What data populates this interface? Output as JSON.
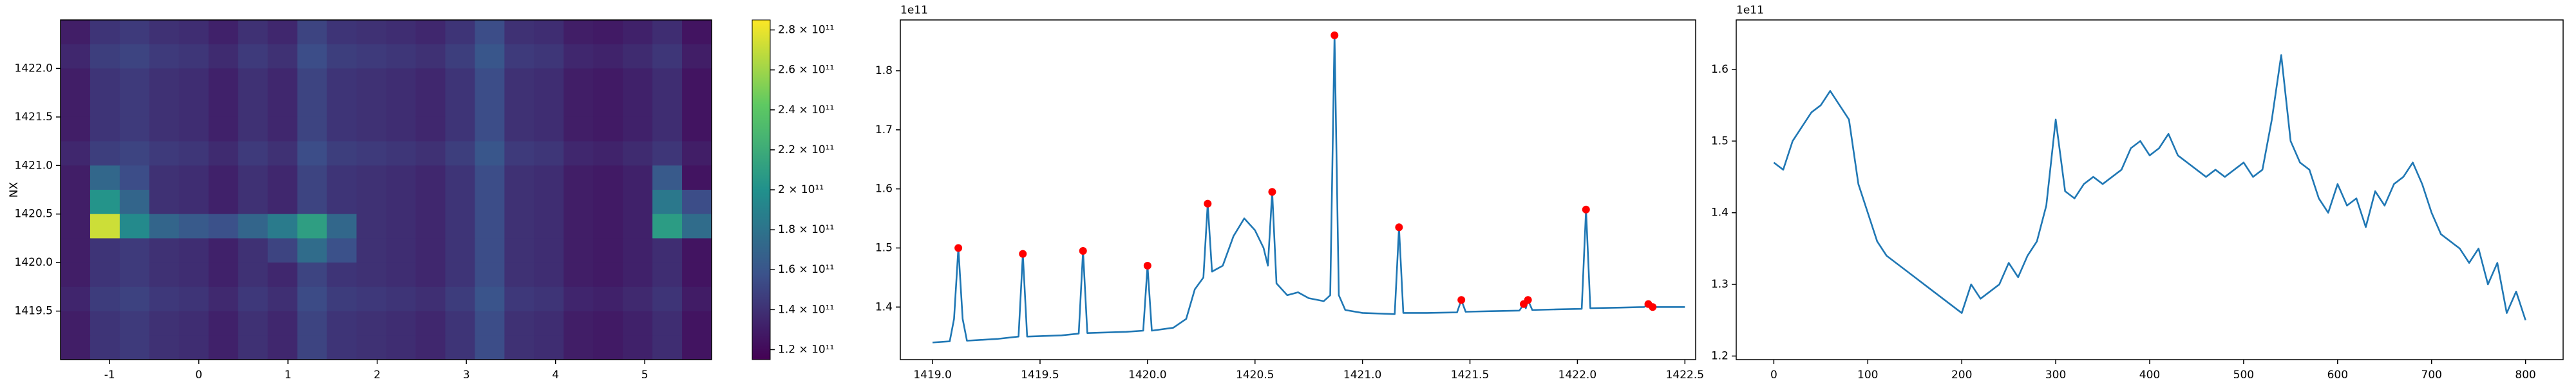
{
  "chart_data": [
    {
      "type": "heatmap",
      "ylabel": "NX",
      "colormap": "viridis",
      "xlim": [
        -1.55,
        5.75
      ],
      "ylim": [
        1419.0,
        1422.5
      ],
      "xticks": [
        -1,
        0,
        1,
        2,
        3,
        4,
        5
      ],
      "yticks": [
        1419.5,
        {
          "value": 1420,
          "label": "1420.0"
        },
        1420.5,
        {
          "value": 1421,
          "label": "1421.0"
        },
        1421.5,
        {
          "value": 1422,
          "label": "1422.0"
        }
      ],
      "clim": [
        115000000000.0,
        285000000000.0
      ],
      "cticks": [
        {
          "value": 120000000000.0,
          "label": "1.2 × 10¹¹"
        },
        {
          "value": 140000000000.0,
          "label": "1.4 × 10¹¹"
        },
        {
          "value": 160000000000.0,
          "label": "1.6 × 10¹¹"
        },
        {
          "value": 180000000000.0,
          "label": "1.8 × 10¹¹"
        },
        {
          "value": 200000000000.0,
          "label": "2 × 10¹¹"
        },
        {
          "value": 220000000000.0,
          "label": "2.2 × 10¹¹"
        },
        {
          "value": 240000000000.0,
          "label": "2.4 × 10¹¹"
        },
        {
          "value": 260000000000.0,
          "label": "2.6 × 10¹¹"
        },
        {
          "value": 280000000000.0,
          "label": "2.8 × 10¹¹"
        }
      ],
      "z": [
        [
          130000000000.0,
          142000000000.0,
          145000000000.0,
          140000000000.0,
          138000000000.0,
          132000000000.0,
          140000000000.0,
          135000000000.0,
          150000000000.0,
          142000000000.0,
          140000000000.0,
          138000000000.0,
          135000000000.0,
          142000000000.0,
          155000000000.0,
          140000000000.0,
          138000000000.0,
          130000000000.0,
          128000000000.0,
          132000000000.0,
          138000000000.0,
          125000000000.0
        ],
        [
          135000000000.0,
          147000000000.0,
          150000000000.0,
          145000000000.0,
          143000000000.0,
          137000000000.0,
          145000000000.0,
          140000000000.0,
          155000000000.0,
          147000000000.0,
          145000000000.0,
          143000000000.0,
          140000000000.0,
          147000000000.0,
          160000000000.0,
          145000000000.0,
          143000000000.0,
          135000000000.0,
          133000000000.0,
          137000000000.0,
          143000000000.0,
          130000000000.0
        ],
        [
          130000000000.0,
          142000000000.0,
          145000000000.0,
          140000000000.0,
          138000000000.0,
          132000000000.0,
          140000000000.0,
          135000000000.0,
          150000000000.0,
          142000000000.0,
          140000000000.0,
          138000000000.0,
          135000000000.0,
          142000000000.0,
          155000000000.0,
          140000000000.0,
          138000000000.0,
          130000000000.0,
          128000000000.0,
          132000000000.0,
          138000000000.0,
          125000000000.0
        ],
        [
          130000000000.0,
          142000000000.0,
          145000000000.0,
          140000000000.0,
          138000000000.0,
          132000000000.0,
          140000000000.0,
          135000000000.0,
          150000000000.0,
          142000000000.0,
          140000000000.0,
          138000000000.0,
          135000000000.0,
          142000000000.0,
          155000000000.0,
          140000000000.0,
          138000000000.0,
          130000000000.0,
          128000000000.0,
          132000000000.0,
          138000000000.0,
          125000000000.0
        ],
        [
          130000000000.0,
          142000000000.0,
          145000000000.0,
          140000000000.0,
          138000000000.0,
          132000000000.0,
          140000000000.0,
          135000000000.0,
          150000000000.0,
          142000000000.0,
          140000000000.0,
          138000000000.0,
          135000000000.0,
          142000000000.0,
          155000000000.0,
          140000000000.0,
          138000000000.0,
          130000000000.0,
          128000000000.0,
          132000000000.0,
          138000000000.0,
          125000000000.0
        ],
        [
          135000000000.0,
          147000000000.0,
          150000000000.0,
          145000000000.0,
          143000000000.0,
          137000000000.0,
          145000000000.0,
          140000000000.0,
          155000000000.0,
          147000000000.0,
          145000000000.0,
          143000000000.0,
          140000000000.0,
          147000000000.0,
          160000000000.0,
          145000000000.0,
          143000000000.0,
          135000000000.0,
          133000000000.0,
          137000000000.0,
          143000000000.0,
          130000000000.0
        ],
        [
          130000000000.0,
          172000000000.0,
          155000000000.0,
          140000000000.0,
          138000000000.0,
          132000000000.0,
          140000000000.0,
          135000000000.0,
          150000000000.0,
          142000000000.0,
          140000000000.0,
          138000000000.0,
          135000000000.0,
          142000000000.0,
          155000000000.0,
          140000000000.0,
          138000000000.0,
          130000000000.0,
          128000000000.0,
          132000000000.0,
          163000000000.0,
          125000000000.0
        ],
        [
          130000000000.0,
          202000000000.0,
          170000000000.0,
          140000000000.0,
          138000000000.0,
          132000000000.0,
          140000000000.0,
          135000000000.0,
          150000000000.0,
          142000000000.0,
          140000000000.0,
          138000000000.0,
          135000000000.0,
          142000000000.0,
          155000000000.0,
          140000000000.0,
          138000000000.0,
          130000000000.0,
          128000000000.0,
          132000000000.0,
          183000000000.0,
          155000000000.0
        ],
        [
          130000000000.0,
          272000000000.0,
          195000000000.0,
          170000000000.0,
          163000000000.0,
          157000000000.0,
          170000000000.0,
          185000000000.0,
          210000000000.0,
          172000000000.0,
          140000000000.0,
          138000000000.0,
          135000000000.0,
          142000000000.0,
          155000000000.0,
          140000000000.0,
          138000000000.0,
          130000000000.0,
          128000000000.0,
          132000000000.0,
          208000000000.0,
          175000000000.0
        ],
        [
          130000000000.0,
          142000000000.0,
          145000000000.0,
          140000000000.0,
          138000000000.0,
          132000000000.0,
          140000000000.0,
          150000000000.0,
          175000000000.0,
          157000000000.0,
          140000000000.0,
          138000000000.0,
          135000000000.0,
          142000000000.0,
          155000000000.0,
          140000000000.0,
          138000000000.0,
          130000000000.0,
          128000000000.0,
          132000000000.0,
          138000000000.0,
          125000000000.0
        ],
        [
          130000000000.0,
          142000000000.0,
          145000000000.0,
          140000000000.0,
          138000000000.0,
          132000000000.0,
          140000000000.0,
          135000000000.0,
          150000000000.0,
          142000000000.0,
          140000000000.0,
          138000000000.0,
          135000000000.0,
          142000000000.0,
          155000000000.0,
          140000000000.0,
          138000000000.0,
          130000000000.0,
          128000000000.0,
          132000000000.0,
          138000000000.0,
          125000000000.0
        ],
        [
          134000000000.0,
          146000000000.0,
          149000000000.0,
          144000000000.0,
          142000000000.0,
          136000000000.0,
          144000000000.0,
          139000000000.0,
          154000000000.0,
          146000000000.0,
          144000000000.0,
          142000000000.0,
          139000000000.0,
          146000000000.0,
          159000000000.0,
          144000000000.0,
          142000000000.0,
          134000000000.0,
          132000000000.0,
          136000000000.0,
          142000000000.0,
          129000000000.0
        ],
        [
          130000000000.0,
          142000000000.0,
          145000000000.0,
          140000000000.0,
          138000000000.0,
          132000000000.0,
          140000000000.0,
          135000000000.0,
          150000000000.0,
          142000000000.0,
          140000000000.0,
          138000000000.0,
          135000000000.0,
          142000000000.0,
          155000000000.0,
          140000000000.0,
          138000000000.0,
          130000000000.0,
          128000000000.0,
          132000000000.0,
          138000000000.0,
          125000000000.0
        ],
        [
          130000000000.0,
          142000000000.0,
          145000000000.0,
          140000000000.0,
          138000000000.0,
          132000000000.0,
          140000000000.0,
          135000000000.0,
          150000000000.0,
          142000000000.0,
          140000000000.0,
          138000000000.0,
          135000000000.0,
          142000000000.0,
          155000000000.0,
          140000000000.0,
          138000000000.0,
          130000000000.0,
          128000000000.0,
          132000000000.0,
          138000000000.0,
          125000000000.0
        ]
      ]
    },
    {
      "type": "line",
      "y_offset_label": "1e11",
      "xlim": [
        1418.85,
        1422.55
      ],
      "ylim": [
        1.311,
        1.886
      ],
      "xticks": [
        {
          "value": 1419,
          "label": "1419.0"
        },
        1419.5,
        {
          "value": 1420,
          "label": "1420.0"
        },
        1420.5,
        {
          "value": 1421,
          "label": "1421.0"
        },
        1421.5,
        {
          "value": 1422,
          "label": "1422.0"
        },
        1422.5
      ],
      "yticks": [
        1.4,
        1.5,
        1.6,
        1.7,
        1.8
      ],
      "series": [
        {
          "color": "#1f77b4",
          "x": [
            1419.0,
            1419.08,
            1419.1,
            1419.12,
            1419.14,
            1419.16,
            1419.3,
            1419.4,
            1419.42,
            1419.44,
            1419.6,
            1419.68,
            1419.7,
            1419.72,
            1419.9,
            1419.98,
            1420.0,
            1420.02,
            1420.12,
            1420.18,
            1420.22,
            1420.26,
            1420.28,
            1420.3,
            1420.35,
            1420.4,
            1420.45,
            1420.5,
            1420.54,
            1420.56,
            1420.58,
            1420.6,
            1420.65,
            1420.7,
            1420.75,
            1420.82,
            1420.85,
            1420.87,
            1420.89,
            1420.92,
            1421.0,
            1421.15,
            1421.17,
            1421.19,
            1421.3,
            1421.44,
            1421.46,
            1421.48,
            1421.6,
            1421.73,
            1421.75,
            1421.76,
            1421.77,
            1421.79,
            1421.9,
            1422.02,
            1422.04,
            1422.06,
            1422.2,
            1422.31,
            1422.33,
            1422.35,
            1422.5
          ],
          "values": [
            1.34,
            1.342,
            1.38,
            1.5,
            1.38,
            1.343,
            1.346,
            1.35,
            1.49,
            1.35,
            1.352,
            1.355,
            1.495,
            1.356,
            1.358,
            1.36,
            1.47,
            1.36,
            1.365,
            1.38,
            1.43,
            1.45,
            1.575,
            1.46,
            1.47,
            1.52,
            1.55,
            1.53,
            1.5,
            1.47,
            1.595,
            1.44,
            1.42,
            1.425,
            1.415,
            1.41,
            1.42,
            1.86,
            1.42,
            1.395,
            1.39,
            1.388,
            1.535,
            1.39,
            1.39,
            1.391,
            1.412,
            1.392,
            1.393,
            1.394,
            1.405,
            1.398,
            1.412,
            1.395,
            1.396,
            1.397,
            1.565,
            1.398,
            1.399,
            1.4,
            1.405,
            1.4,
            1.4
          ]
        },
        {
          "color": "red",
          "marker": "o",
          "line": false,
          "x": [
            1419.12,
            1419.42,
            1419.7,
            1420.0,
            1420.28,
            1420.58,
            1420.87,
            1421.17,
            1421.46,
            1421.75,
            1421.77,
            1422.04,
            1422.33,
            1422.35
          ],
          "values": [
            1.5,
            1.49,
            1.495,
            1.47,
            1.575,
            1.595,
            1.86,
            1.535,
            1.412,
            1.405,
            1.412,
            1.565,
            1.405,
            1.4
          ]
        }
      ]
    },
    {
      "type": "line",
      "y_offset_label": "1e11",
      "xlim": [
        -40,
        840
      ],
      "ylim": [
        1.195,
        1.669
      ],
      "xticks": [
        0,
        100,
        200,
        300,
        400,
        500,
        600,
        700,
        800
      ],
      "yticks": [
        1.2,
        1.3,
        1.4,
        1.5,
        1.6
      ],
      "series": [
        {
          "color": "#1f77b4",
          "x": [
            0,
            10,
            20,
            30,
            40,
            50,
            60,
            70,
            80,
            90,
            100,
            110,
            120,
            130,
            140,
            150,
            160,
            170,
            180,
            190,
            200,
            210,
            220,
            230,
            240,
            250,
            260,
            270,
            280,
            290,
            300,
            310,
            320,
            330,
            340,
            350,
            360,
            370,
            380,
            390,
            400,
            410,
            420,
            430,
            440,
            450,
            460,
            470,
            480,
            490,
            500,
            510,
            520,
            530,
            540,
            550,
            560,
            570,
            580,
            590,
            600,
            610,
            620,
            630,
            640,
            650,
            660,
            670,
            680,
            690,
            700,
            710,
            720,
            730,
            740,
            750,
            760,
            770,
            780,
            790,
            800
          ],
          "values": [
            1.47,
            1.46,
            1.5,
            1.52,
            1.54,
            1.55,
            1.57,
            1.55,
            1.53,
            1.44,
            1.4,
            1.36,
            1.34,
            1.33,
            1.32,
            1.31,
            1.3,
            1.29,
            1.28,
            1.27,
            1.26,
            1.3,
            1.28,
            1.29,
            1.3,
            1.33,
            1.31,
            1.34,
            1.36,
            1.41,
            1.53,
            1.43,
            1.42,
            1.44,
            1.45,
            1.44,
            1.45,
            1.46,
            1.49,
            1.5,
            1.48,
            1.49,
            1.51,
            1.48,
            1.47,
            1.46,
            1.45,
            1.46,
            1.45,
            1.46,
            1.47,
            1.45,
            1.46,
            1.53,
            1.62,
            1.5,
            1.47,
            1.46,
            1.42,
            1.4,
            1.44,
            1.41,
            1.42,
            1.38,
            1.43,
            1.41,
            1.44,
            1.45,
            1.47,
            1.44,
            1.4,
            1.37,
            1.36,
            1.35,
            1.33,
            1.35,
            1.3,
            1.33,
            1.26,
            1.29,
            1.25
          ]
        }
      ]
    }
  ]
}
